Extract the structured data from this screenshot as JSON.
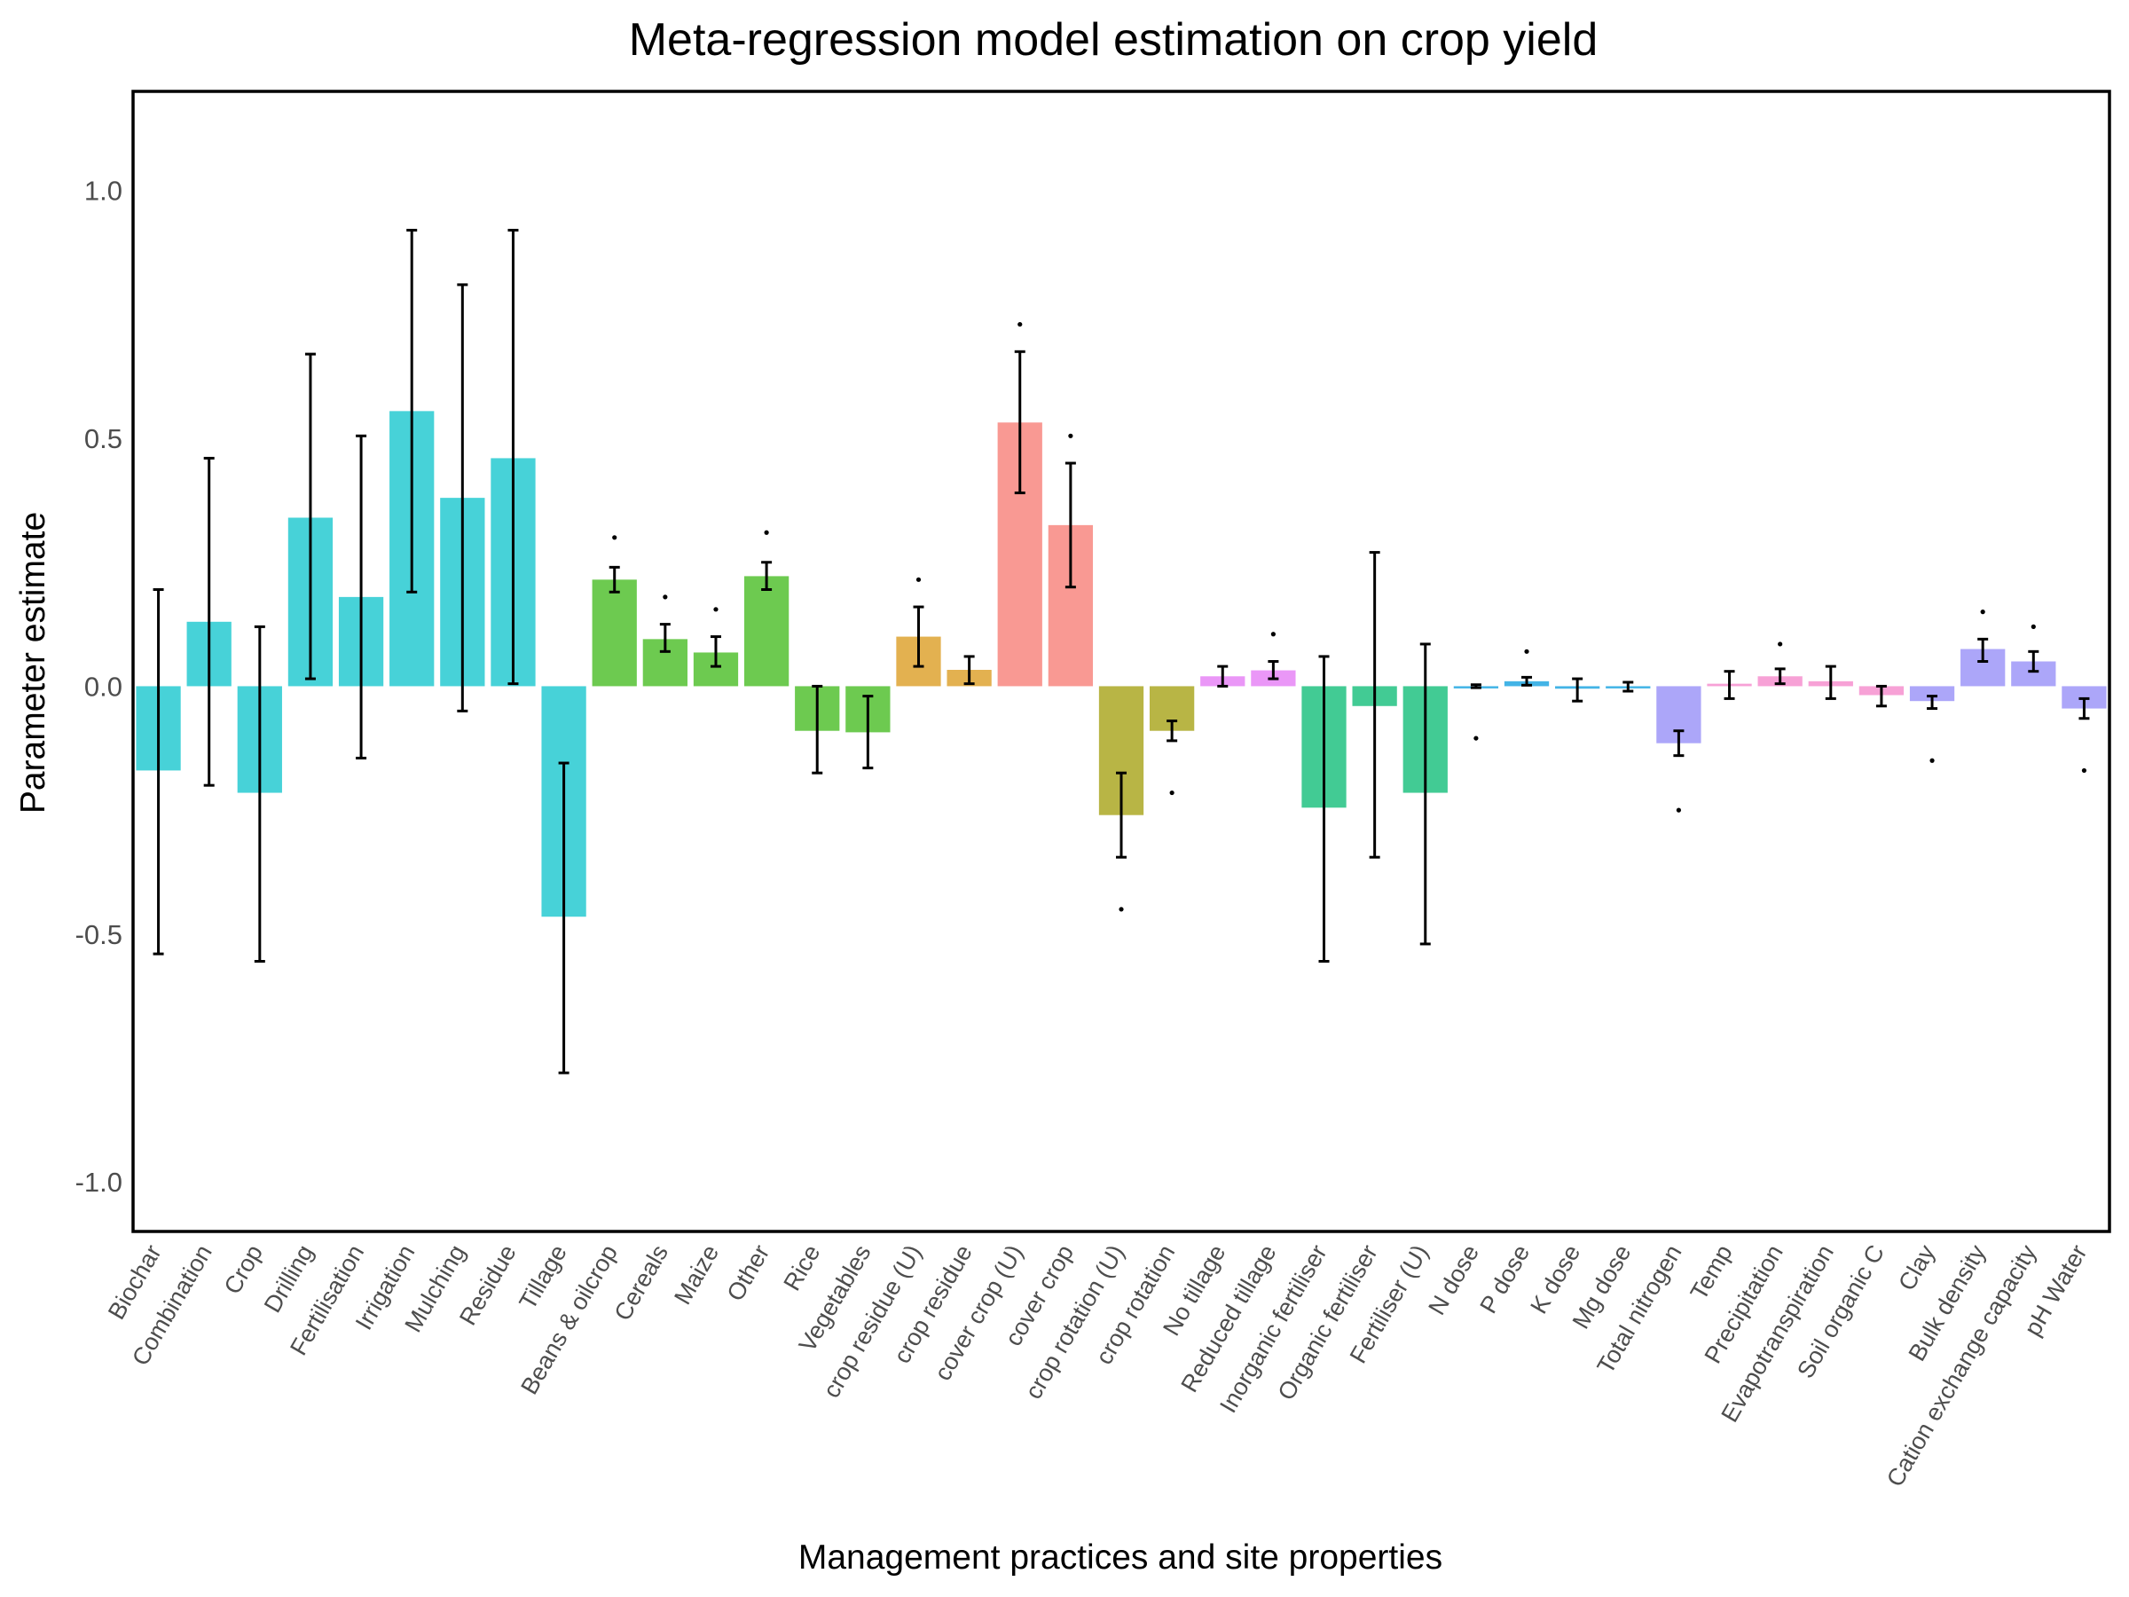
{
  "chart_data": {
    "type": "bar",
    "title": "Meta-regression model estimation on crop yield",
    "xlabel": "Management practices and site properties",
    "ylabel": "Parameter estimate",
    "ylim": [
      -1.1,
      1.2
    ],
    "yticks": [
      -1.0,
      -0.5,
      0.0,
      0.5,
      1.0
    ],
    "ytick_labels": [
      "-1.0",
      "-0.5",
      "0.0",
      "0.5",
      "1.0"
    ],
    "grid": false,
    "legend": "none",
    "groups": [
      {
        "color": "#1ec8cf",
        "categories": [
          "Biochar",
          "Combination",
          "Crop",
          "Drilling",
          "Fertilisation",
          "Irrigation",
          "Mulching",
          "Residue",
          "Tillage"
        ]
      },
      {
        "color": "#4dbe2a",
        "categories": [
          "Beans & oilcrop",
          "Cereals",
          "Maize",
          "Other",
          "Rice",
          "Vegetables"
        ]
      },
      {
        "color": "#dda02a",
        "categories": [
          "crop residue (U)",
          "crop residue"
        ]
      },
      {
        "color": "#f8827b",
        "categories": [
          "cover crop (U)",
          "cover crop"
        ]
      },
      {
        "color": "#a8a51c",
        "categories": [
          "crop rotation (U)",
          "crop rotation"
        ]
      },
      {
        "color": "#e580f5",
        "categories": [
          "No tillage",
          "Reduced tillage"
        ]
      },
      {
        "color": "#19c07c",
        "categories": [
          "Inorganic fertiliser",
          "Organic fertiliser",
          "Fertiliser (U)"
        ]
      },
      {
        "color": "#1aa3e0",
        "categories": [
          "N dose",
          "P dose",
          "K dose",
          "Mg dose"
        ]
      },
      {
        "color": "#9a92f8",
        "categories": [
          "Total nitrogen"
        ]
      },
      {
        "color": "#f58ccd",
        "categories": [
          "Temp",
          "Precipitation",
          "Evapotranspiration",
          "Soil organic C"
        ]
      },
      {
        "color": "#9a92f8",
        "categories": [
          "Clay",
          "Bulk density",
          "Cation exchange capacity",
          "pH Water"
        ]
      }
    ],
    "categories": [
      "Biochar",
      "Combination",
      "Crop",
      "Drilling",
      "Fertilisation",
      "Irrigation",
      "Mulching",
      "Residue",
      "Tillage",
      "Beans & oilcrop",
      "Cereals",
      "Maize",
      "Other",
      "Rice",
      "Vegetables",
      "crop residue (U)",
      "crop residue",
      "cover crop (U)",
      "cover crop",
      "crop rotation (U)",
      "crop rotation",
      "No tillage",
      "Reduced tillage",
      "Inorganic fertiliser",
      "Organic fertiliser",
      "Fertiliser (U)",
      "N dose",
      "P dose",
      "K dose",
      "Mg dose",
      "Total nitrogen",
      "Temp",
      "Precipitation",
      "Evapotranspiration",
      "Soil organic C",
      "Clay",
      "Bulk density",
      "Cation exchange capacity",
      "pH Water"
    ],
    "values": [
      -0.17,
      0.13,
      -0.215,
      0.34,
      0.18,
      0.555,
      0.38,
      0.46,
      -0.465,
      0.215,
      0.095,
      0.068,
      0.222,
      -0.09,
      -0.093,
      0.1,
      0.033,
      0.532,
      0.325,
      -0.26,
      -0.09,
      0.02,
      0.032,
      -0.245,
      -0.04,
      -0.215,
      0.0,
      0.01,
      -0.005,
      0.0,
      -0.115,
      0.005,
      0.02,
      0.01,
      -0.018,
      -0.03,
      0.075,
      0.05,
      -0.045
    ],
    "lower": [
      -0.54,
      -0.2,
      -0.555,
      0.015,
      -0.145,
      0.19,
      -0.05,
      0.005,
      -0.78,
      0.19,
      0.07,
      0.04,
      0.195,
      -0.175,
      -0.165,
      0.04,
      0.005,
      0.39,
      0.2,
      -0.345,
      -0.11,
      0.0,
      0.015,
      -0.555,
      -0.345,
      -0.52,
      -0.003,
      0.002,
      -0.03,
      -0.01,
      -0.14,
      -0.025,
      0.005,
      -0.025,
      -0.04,
      -0.045,
      0.05,
      0.03,
      -0.065
    ],
    "upper": [
      0.195,
      0.46,
      0.12,
      0.67,
      0.505,
      0.92,
      0.81,
      0.92,
      -0.155,
      0.24,
      0.125,
      0.1,
      0.25,
      0.0,
      -0.02,
      0.16,
      0.06,
      0.675,
      0.45,
      -0.175,
      -0.07,
      0.04,
      0.05,
      0.06,
      0.27,
      0.085,
      0.003,
      0.018,
      0.015,
      0.008,
      -0.09,
      0.03,
      0.035,
      0.04,
      0.0,
      -0.02,
      0.095,
      0.07,
      -0.025
    ],
    "significance_dots": [
      {
        "category": "Beans & oilcrop",
        "y": 0.3
      },
      {
        "category": "Cereals",
        "y": 0.18
      },
      {
        "category": "Maize",
        "y": 0.155
      },
      {
        "category": "Other",
        "y": 0.31
      },
      {
        "category": "crop residue (U)",
        "y": 0.215
      },
      {
        "category": "cover crop (U)",
        "y": 0.73
      },
      {
        "category": "cover crop",
        "y": 0.505
      },
      {
        "category": "crop rotation (U)",
        "y": -0.45
      },
      {
        "category": "crop rotation",
        "y": -0.215
      },
      {
        "category": "Reduced tillage",
        "y": 0.105
      },
      {
        "category": "N dose",
        "y": -0.105
      },
      {
        "category": "P dose",
        "y": 0.07
      },
      {
        "category": "Total nitrogen",
        "y": -0.25
      },
      {
        "category": "Precipitation",
        "y": 0.085
      },
      {
        "category": "Clay",
        "y": -0.15
      },
      {
        "category": "Bulk density",
        "y": 0.15
      },
      {
        "category": "Cation exchange capacity",
        "y": 0.12
      },
      {
        "category": "pH Water",
        "y": -0.17
      }
    ]
  }
}
